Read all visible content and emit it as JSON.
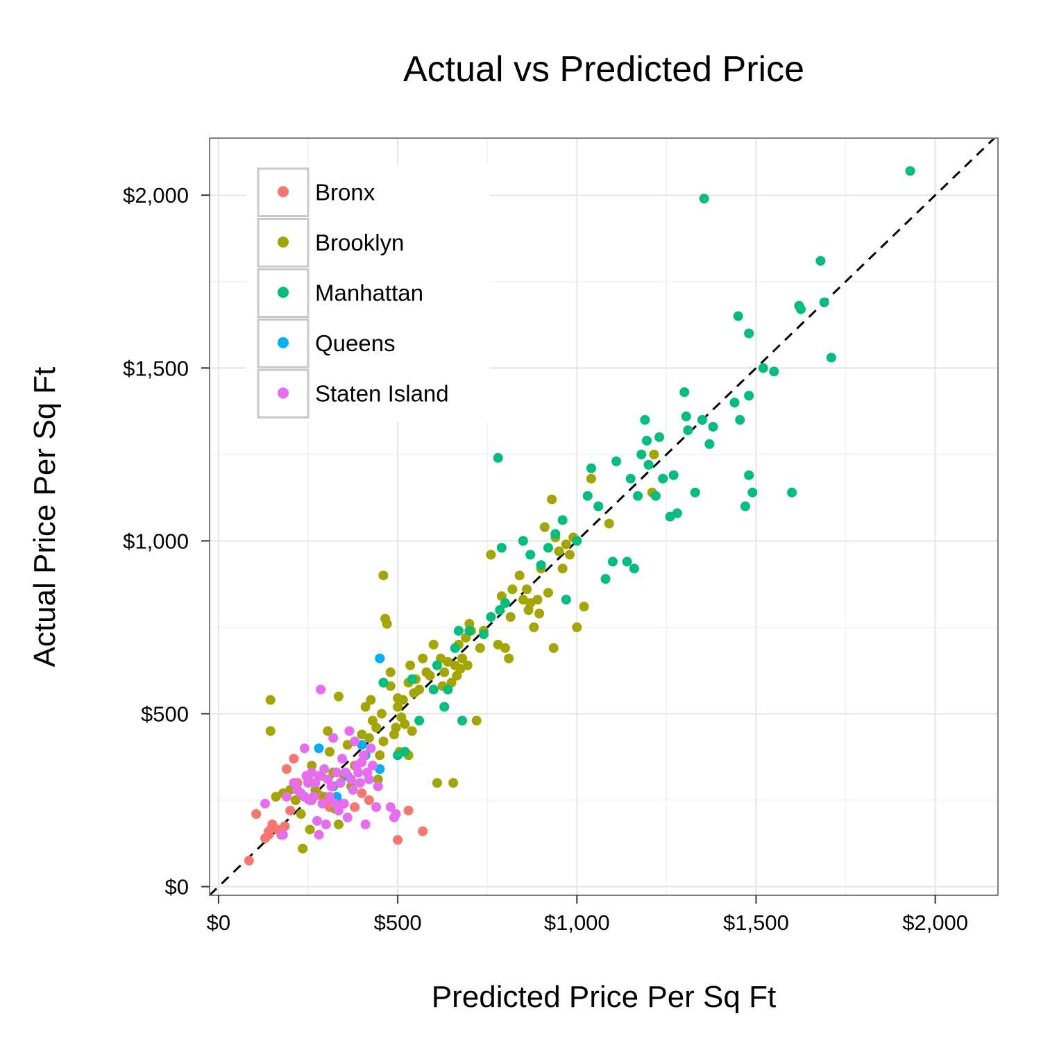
{
  "chart_data": {
    "type": "scatter",
    "title": "Actual vs Predicted Price",
    "xlabel": "Predicted Price Per Sq Ft",
    "ylabel": "Actual Price Per Sq Ft",
    "xlim": [
      -25,
      2175
    ],
    "ylim": [
      -25,
      2165
    ],
    "x_ticks": [
      0,
      500,
      1000,
      1500,
      2000
    ],
    "x_tick_labels": [
      "$0",
      "$500",
      "$1,000",
      "$1,500",
      "$2,000"
    ],
    "y_ticks": [
      0,
      500,
      1000,
      1500,
      2000
    ],
    "y_tick_labels": [
      "$0",
      "$500",
      "$1,000",
      "$1,500",
      "$2,000"
    ],
    "grid": true,
    "legend_position": "top-left",
    "reference_line": {
      "type": "identity",
      "style": "dashed",
      "color": "#000000"
    },
    "series": [
      {
        "name": "Bronx",
        "color": "#F8766D",
        "points": [
          [
            85,
            75
          ],
          [
            105,
            210
          ],
          [
            130,
            140
          ],
          [
            140,
            160
          ],
          [
            150,
            175
          ],
          [
            165,
            165
          ],
          [
            175,
            150
          ],
          [
            185,
            175
          ],
          [
            190,
            340
          ],
          [
            200,
            220
          ],
          [
            210,
            370
          ],
          [
            220,
            300
          ],
          [
            240,
            260
          ],
          [
            260,
            250
          ],
          [
            280,
            265
          ],
          [
            300,
            240
          ],
          [
            310,
            230
          ],
          [
            330,
            255
          ],
          [
            350,
            240
          ],
          [
            380,
            230
          ],
          [
            400,
            270
          ],
          [
            420,
            250
          ],
          [
            500,
            135
          ],
          [
            530,
            220
          ],
          [
            570,
            160
          ],
          [
            150,
            180
          ],
          [
            140,
            150
          ]
        ]
      },
      {
        "name": "Brooklyn",
        "color": "#A3A500",
        "points": [
          [
            145,
            540
          ],
          [
            145,
            450
          ],
          [
            160,
            260
          ],
          [
            180,
            270
          ],
          [
            200,
            280
          ],
          [
            215,
            250
          ],
          [
            230,
            210
          ],
          [
            235,
            110
          ],
          [
            250,
            310
          ],
          [
            255,
            165
          ],
          [
            260,
            350
          ],
          [
            270,
            280
          ],
          [
            285,
            320
          ],
          [
            295,
            260
          ],
          [
            305,
            450
          ],
          [
            310,
            390
          ],
          [
            320,
            330
          ],
          [
            325,
            225
          ],
          [
            335,
            550
          ],
          [
            335,
            180
          ],
          [
            340,
            300
          ],
          [
            350,
            320
          ],
          [
            360,
            410
          ],
          [
            370,
            290
          ],
          [
            380,
            350
          ],
          [
            390,
            330
          ],
          [
            400,
            440
          ],
          [
            410,
            520
          ],
          [
            420,
            430
          ],
          [
            425,
            540
          ],
          [
            430,
            480
          ],
          [
            440,
            460
          ],
          [
            445,
            310
          ],
          [
            450,
            380
          ],
          [
            455,
            500
          ],
          [
            460,
            420
          ],
          [
            460,
            900
          ],
          [
            465,
            775
          ],
          [
            470,
            760
          ],
          [
            480,
            620
          ],
          [
            480,
            580
          ],
          [
            490,
            440
          ],
          [
            495,
            460
          ],
          [
            500,
            520
          ],
          [
            500,
            545
          ],
          [
            505,
            390
          ],
          [
            510,
            490
          ],
          [
            515,
            540
          ],
          [
            520,
            470
          ],
          [
            530,
            590
          ],
          [
            530,
            380
          ],
          [
            535,
            640
          ],
          [
            540,
            450
          ],
          [
            545,
            560
          ],
          [
            550,
            600
          ],
          [
            560,
            570
          ],
          [
            570,
            660
          ],
          [
            580,
            620
          ],
          [
            590,
            610
          ],
          [
            600,
            700
          ],
          [
            610,
            300
          ],
          [
            620,
            660
          ],
          [
            625,
            580
          ],
          [
            630,
            620
          ],
          [
            640,
            650
          ],
          [
            650,
            590
          ],
          [
            655,
            300
          ],
          [
            660,
            640
          ],
          [
            665,
            610
          ],
          [
            670,
            700
          ],
          [
            675,
            630
          ],
          [
            680,
            660
          ],
          [
            690,
            720
          ],
          [
            695,
            640
          ],
          [
            700,
            760
          ],
          [
            705,
            740
          ],
          [
            720,
            480
          ],
          [
            730,
            690
          ],
          [
            740,
            740
          ],
          [
            760,
            960
          ],
          [
            780,
            700
          ],
          [
            790,
            840
          ],
          [
            800,
            690
          ],
          [
            810,
            660
          ],
          [
            815,
            780
          ],
          [
            820,
            860
          ],
          [
            840,
            900
          ],
          [
            850,
            830
          ],
          [
            860,
            860
          ],
          [
            865,
            800
          ],
          [
            870,
            820
          ],
          [
            880,
            750
          ],
          [
            890,
            830
          ],
          [
            895,
            790
          ],
          [
            900,
            920
          ],
          [
            910,
            1040
          ],
          [
            920,
            850
          ],
          [
            930,
            1120
          ],
          [
            935,
            690
          ],
          [
            940,
            1010
          ],
          [
            950,
            970
          ],
          [
            960,
            920
          ],
          [
            970,
            990
          ],
          [
            980,
            960
          ],
          [
            990,
            1010
          ],
          [
            1000,
            750
          ],
          [
            1020,
            810
          ],
          [
            1040,
            1180
          ],
          [
            1060,
            1100
          ],
          [
            1090,
            1050
          ],
          [
            1210,
            1140
          ],
          [
            1215,
            1250
          ]
        ]
      },
      {
        "name": "Manhattan",
        "color": "#00BF7D",
        "points": [
          [
            460,
            590
          ],
          [
            500,
            380
          ],
          [
            520,
            390
          ],
          [
            540,
            600
          ],
          [
            560,
            480
          ],
          [
            600,
            570
          ],
          [
            610,
            640
          ],
          [
            630,
            520
          ],
          [
            640,
            570
          ],
          [
            660,
            690
          ],
          [
            670,
            740
          ],
          [
            680,
            480
          ],
          [
            700,
            740
          ],
          [
            740,
            730
          ],
          [
            760,
            780
          ],
          [
            780,
            1240
          ],
          [
            785,
            800
          ],
          [
            790,
            980
          ],
          [
            800,
            820
          ],
          [
            850,
            1000
          ],
          [
            870,
            960
          ],
          [
            900,
            930
          ],
          [
            920,
            980
          ],
          [
            940,
            1020
          ],
          [
            960,
            1060
          ],
          [
            970,
            830
          ],
          [
            1000,
            1000
          ],
          [
            1030,
            1130
          ],
          [
            1040,
            1210
          ],
          [
            1060,
            1100
          ],
          [
            1080,
            890
          ],
          [
            1100,
            940
          ],
          [
            1110,
            1230
          ],
          [
            1140,
            940
          ],
          [
            1150,
            1180
          ],
          [
            1160,
            920
          ],
          [
            1170,
            1130
          ],
          [
            1180,
            1250
          ],
          [
            1190,
            1350
          ],
          [
            1195,
            1290
          ],
          [
            1200,
            1220
          ],
          [
            1220,
            1130
          ],
          [
            1230,
            1300
          ],
          [
            1240,
            1180
          ],
          [
            1260,
            1070
          ],
          [
            1270,
            1190
          ],
          [
            1280,
            1080
          ],
          [
            1300,
            1430
          ],
          [
            1305,
            1360
          ],
          [
            1310,
            1320
          ],
          [
            1330,
            1140
          ],
          [
            1350,
            1350
          ],
          [
            1355,
            1990
          ],
          [
            1370,
            1280
          ],
          [
            1380,
            1330
          ],
          [
            1440,
            1400
          ],
          [
            1450,
            1650
          ],
          [
            1455,
            1350
          ],
          [
            1470,
            1100
          ],
          [
            1480,
            1600
          ],
          [
            1480,
            1420
          ],
          [
            1480,
            1190
          ],
          [
            1490,
            1140
          ],
          [
            1520,
            1500
          ],
          [
            1550,
            1490
          ],
          [
            1600,
            1140
          ],
          [
            1620,
            1680
          ],
          [
            1625,
            1670
          ],
          [
            1680,
            1810
          ],
          [
            1690,
            1690
          ],
          [
            1710,
            1530
          ],
          [
            1930,
            2070
          ]
        ]
      },
      {
        "name": "Queens",
        "color": "#00B0F6",
        "points": [
          [
            280,
            400
          ],
          [
            320,
            290
          ],
          [
            330,
            260
          ],
          [
            360,
            320
          ],
          [
            400,
            410
          ],
          [
            410,
            380
          ],
          [
            450,
            340
          ],
          [
            450,
            660
          ]
        ]
      },
      {
        "name": "Staten Island",
        "color": "#E76BF3",
        "points": [
          [
            130,
            240
          ],
          [
            180,
            150
          ],
          [
            190,
            260
          ],
          [
            210,
            300
          ],
          [
            220,
            280
          ],
          [
            230,
            270
          ],
          [
            240,
            400
          ],
          [
            245,
            320
          ],
          [
            250,
            300
          ],
          [
            255,
            250
          ],
          [
            260,
            330
          ],
          [
            265,
            260
          ],
          [
            270,
            300
          ],
          [
            275,
            190
          ],
          [
            280,
            150
          ],
          [
            285,
            570
          ],
          [
            290,
            240
          ],
          [
            295,
            340
          ],
          [
            300,
            180
          ],
          [
            305,
            310
          ],
          [
            310,
            260
          ],
          [
            315,
            290
          ],
          [
            320,
            430
          ],
          [
            325,
            240
          ],
          [
            330,
            330
          ],
          [
            335,
            220
          ],
          [
            340,
            300
          ],
          [
            345,
            370
          ],
          [
            350,
            240
          ],
          [
            355,
            330
          ],
          [
            360,
            200
          ],
          [
            365,
            450
          ],
          [
            370,
            310
          ],
          [
            375,
            280
          ],
          [
            380,
            420
          ],
          [
            385,
            350
          ],
          [
            390,
            330
          ],
          [
            395,
            300
          ],
          [
            400,
            360
          ],
          [
            405,
            380
          ],
          [
            410,
            180
          ],
          [
            415,
            330
          ],
          [
            420,
            310
          ],
          [
            425,
            400
          ],
          [
            430,
            350
          ],
          [
            440,
            230
          ],
          [
            445,
            290
          ],
          [
            480,
            230
          ],
          [
            490,
            200
          ],
          [
            495,
            210
          ],
          [
            280,
            320
          ],
          [
            240,
            260
          ]
        ]
      }
    ]
  }
}
